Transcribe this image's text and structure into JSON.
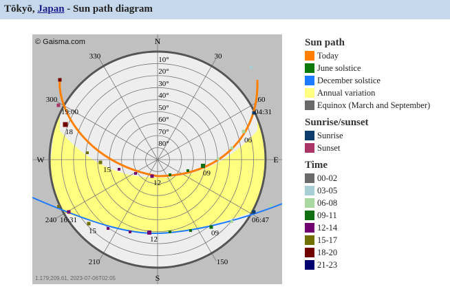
{
  "header": {
    "city": "Tōkyō",
    "separator": ",",
    "country": "Japan",
    "rest": "- Sun path diagram"
  },
  "diagram": {
    "copyright": "© Gaisma.com",
    "footer": "1.179;209.61, 2023-07-06T02:05",
    "compass": {
      "n": "N",
      "e": "E",
      "s": "S",
      "w": "W"
    },
    "azimuth_labels": [
      "30",
      "60",
      "150",
      "210",
      "240",
      "300",
      "330"
    ],
    "elevation_labels": [
      "10°",
      "20°",
      "30°",
      "40°",
      "50°",
      "60°",
      "70°",
      "80°"
    ],
    "today_labels": {
      "sunrise": "04:31",
      "sunset": "19:00",
      "h06": "06",
      "h09": "09",
      "h12": "12",
      "h15": "15",
      "h18": "18"
    },
    "winter_labels": {
      "sunrise": "06:47",
      "sunset": "16:31",
      "h09": "09",
      "h12": "12",
      "h15": "15"
    },
    "colors": {
      "background": "#c0c0c0",
      "annual_fill": "#ffff80",
      "today": "#ff8000",
      "june": "#008000",
      "december": "#1e7bff",
      "equinox": "#666666"
    }
  },
  "legend": {
    "sun_path_title": "Sun path",
    "sun_path_items": [
      {
        "label": "Today",
        "color": "#ff8000"
      },
      {
        "label": "June solstice",
        "color": "#0b7a0b"
      },
      {
        "label": "December solstice",
        "color": "#1e7bff"
      },
      {
        "label": "Annual variation",
        "color": "#ffff80"
      },
      {
        "label": "Equinox (March and September)",
        "color": "#6a6a6a"
      }
    ],
    "sunrise_title": "Sunrise/sunset",
    "sunrise_items": [
      {
        "label": "Sunrise",
        "color": "#0b3c6b"
      },
      {
        "label": "Sunset",
        "color": "#a83566"
      }
    ],
    "time_title": "Time",
    "time_items": [
      {
        "label": "00-02",
        "color": "#6a6a6a"
      },
      {
        "label": "03-05",
        "color": "#a8d0d4"
      },
      {
        "label": "06-08",
        "color": "#a8d8a0"
      },
      {
        "label": "09-11",
        "color": "#0f6e0f"
      },
      {
        "label": "12-14",
        "color": "#700070"
      },
      {
        "label": "15-17",
        "color": "#707000"
      },
      {
        "label": "18-20",
        "color": "#700000"
      },
      {
        "label": "21-23",
        "color": "#00006e"
      }
    ]
  }
}
